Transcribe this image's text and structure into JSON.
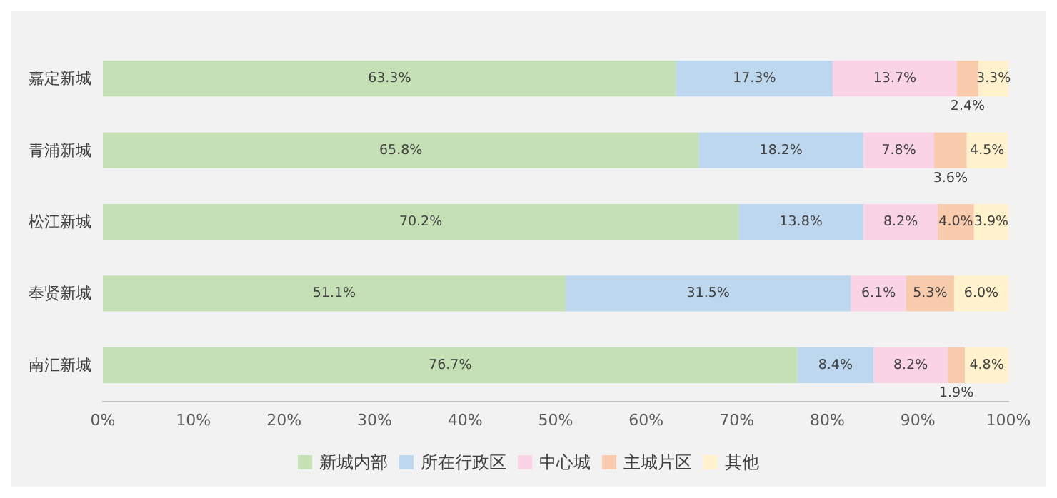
{
  "chart_data": {
    "type": "bar",
    "orientation": "horizontal",
    "stacked": true,
    "categories": [
      "嘉定新城",
      "青浦新城",
      "松江新城",
      "奉贤新城",
      "南汇新城"
    ],
    "series": [
      {
        "name": "新城内部",
        "color": "#c5e0b4",
        "values": [
          63.3,
          65.8,
          70.2,
          51.1,
          76.7
        ],
        "value_labels": [
          "63.3%",
          "65.8%",
          "70.2%",
          "51.1%",
          "76.7%"
        ]
      },
      {
        "name": "所在行政区",
        "color": "#bdd7ee",
        "values": [
          17.3,
          18.2,
          13.8,
          31.5,
          8.4
        ],
        "value_labels": [
          "17.3%",
          "18.2%",
          "13.8%",
          "31.5%",
          "8.4%"
        ]
      },
      {
        "name": "中心城",
        "color": "#fbd3e6",
        "values": [
          13.7,
          7.8,
          8.2,
          6.1,
          8.2
        ],
        "value_labels": [
          "13.7%",
          "7.8%",
          "8.2%",
          "6.1%",
          "8.2%"
        ]
      },
      {
        "name": "主城片区",
        "color": "#f8cbad",
        "values": [
          2.4,
          3.6,
          4.0,
          5.3,
          1.9
        ],
        "value_labels": [
          "2.4%",
          "3.6%",
          "4.0%",
          "5.3%",
          "1.9%"
        ]
      },
      {
        "name": "其他",
        "color": "#fff2cc",
        "values": [
          3.3,
          4.5,
          3.9,
          6.0,
          4.8
        ],
        "value_labels": [
          "3.3%",
          "4.5%",
          "3.9%",
          "6.0%",
          "4.8%"
        ]
      }
    ],
    "xlim": [
      0,
      100
    ],
    "xticks": [
      {
        "value": 0,
        "label": "0%"
      },
      {
        "value": 10,
        "label": "10%"
      },
      {
        "value": 20,
        "label": "20%"
      },
      {
        "value": 30,
        "label": "30%"
      },
      {
        "value": 40,
        "label": "40%"
      },
      {
        "value": 50,
        "label": "50%"
      },
      {
        "value": 60,
        "label": "60%"
      },
      {
        "value": 70,
        "label": "70%"
      },
      {
        "value": 80,
        "label": "80%"
      },
      {
        "value": 90,
        "label": "90%"
      },
      {
        "value": 100,
        "label": "100%"
      }
    ],
    "legend": "bottom"
  }
}
